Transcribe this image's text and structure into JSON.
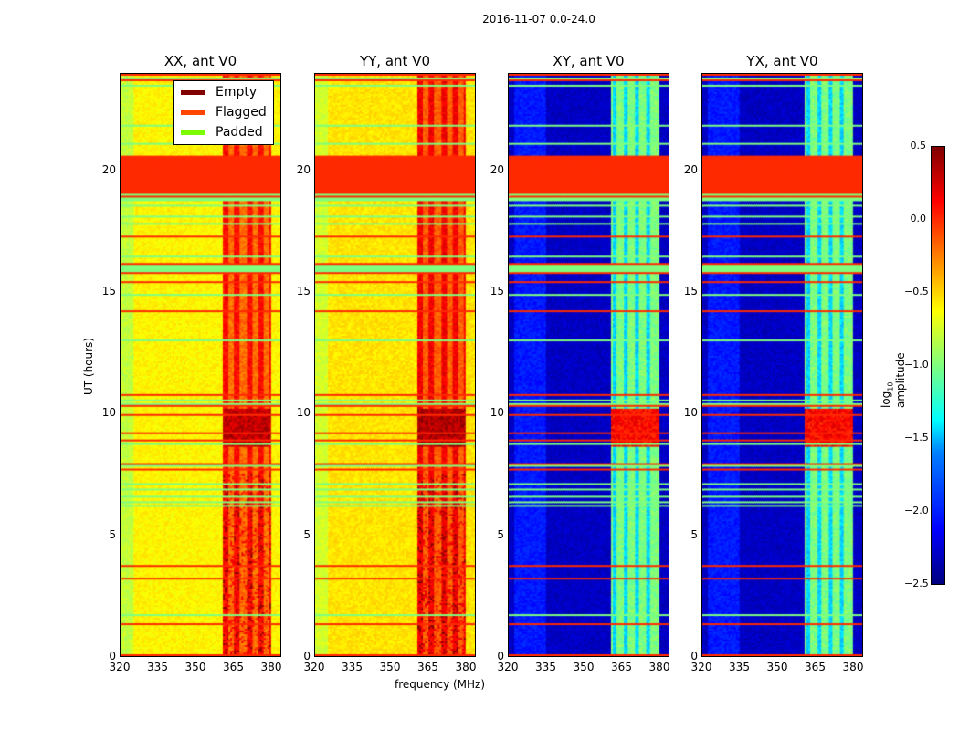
{
  "chart_data": {
    "type": "heatmap",
    "title": "2016-11-07 0.0-24.0",
    "xlabel": "frequency (MHz)",
    "ylabel": "UT (hours)",
    "xlim": [
      320,
      384
    ],
    "ylim": [
      0,
      24
    ],
    "xticks": [
      "320",
      "335",
      "350",
      "365",
      "380"
    ],
    "yticks": [
      "0",
      "5",
      "10",
      "15",
      "20"
    ],
    "panels": [
      {
        "title": "XX, ant V0",
        "pol": "XX",
        "base": -0.6,
        "band_value": -0.1,
        "night_band_value": 0.3
      },
      {
        "title": "YY, ant V0",
        "pol": "YY",
        "base": -0.55,
        "band_value": -0.05,
        "night_band_value": 0.35
      },
      {
        "title": "XY, ant V0",
        "pol": "XY",
        "base": -2.3,
        "band_value": -1.0,
        "night_band_value": 0.1
      },
      {
        "title": "YX, ant V0",
        "pol": "YX",
        "base": -2.3,
        "band_value": -1.0,
        "night_band_value": 0.1
      }
    ],
    "bright_band_mhz": [
      361,
      380
    ],
    "flagged_block_hours": [
      18.7,
      20.6
    ],
    "legend": {
      "position": "top-right of first panel",
      "entries": [
        {
          "label": "Empty",
          "color": "#800000"
        },
        {
          "label": "Flagged",
          "color": "#ff4500"
        },
        {
          "label": "Padded",
          "color": "#7cfc00"
        }
      ]
    },
    "colorbar": {
      "label_prefix": "log",
      "label_sub": "10",
      "label_suffix": " amplitude",
      "range": [
        -2.5,
        0.5
      ],
      "ticks": [
        "0.5",
        "0.0",
        "−0.5",
        "−1.0",
        "−1.5",
        "−2.0",
        "−2.5"
      ],
      "colormap": "jet"
    }
  }
}
